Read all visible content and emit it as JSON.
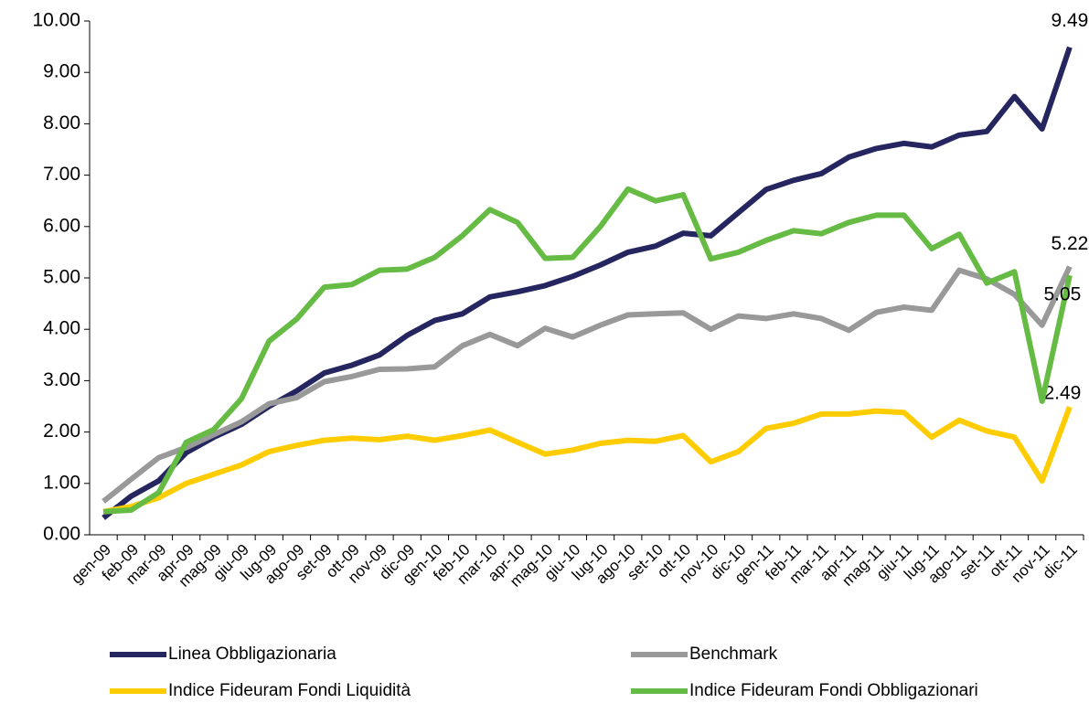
{
  "chart_data": {
    "type": "line",
    "categories": [
      "gen-09",
      "feb-09",
      "mar-09",
      "apr-09",
      "mag-09",
      "giu-09",
      "lug-09",
      "ago-09",
      "set-09",
      "ott-09",
      "nov-09",
      "dic-09",
      "gen-10",
      "feb-10",
      "mar-10",
      "apr-10",
      "mag-10",
      "giu-10",
      "lug-10",
      "ago-10",
      "set-10",
      "ott-10",
      "nov-10",
      "dic-10",
      "gen-11",
      "feb-11",
      "mar-11",
      "apr-11",
      "mag-11",
      "giu-11",
      "lug-11",
      "ago-11",
      "set-11",
      "ott-11",
      "nov-11",
      "dic-11"
    ],
    "series": [
      {
        "name": "Linea Obbligazionaria",
        "color": "#25255f",
        "values": [
          0.33,
          0.75,
          1.05,
          1.6,
          1.9,
          2.15,
          2.5,
          2.8,
          3.15,
          3.3,
          3.5,
          3.88,
          4.17,
          4.3,
          4.63,
          4.73,
          4.85,
          5.03,
          5.25,
          5.5,
          5.62,
          5.87,
          5.82,
          6.27,
          6.72,
          6.9,
          7.03,
          7.35,
          7.52,
          7.62,
          7.55,
          7.78,
          7.85,
          8.53,
          7.9,
          9.49
        ]
      },
      {
        "name": "Benchmark",
        "color": "#999999",
        "values": [
          0.65,
          1.08,
          1.5,
          1.7,
          1.95,
          2.2,
          2.55,
          2.67,
          2.98,
          3.08,
          3.22,
          3.23,
          3.27,
          3.68,
          3.9,
          3.68,
          4.02,
          3.85,
          4.08,
          4.28,
          4.3,
          4.32,
          4.0,
          4.26,
          4.21,
          4.3,
          4.21,
          3.98,
          4.33,
          4.43,
          4.37,
          5.15,
          4.98,
          4.68,
          4.08,
          5.22
        ]
      },
      {
        "name": "Indice Fideuram Fondi Liquidità",
        "color": "#ffcc00",
        "values": [
          0.45,
          0.55,
          0.72,
          1.0,
          1.18,
          1.36,
          1.62,
          1.74,
          1.84,
          1.88,
          1.85,
          1.92,
          1.84,
          1.93,
          2.04,
          1.8,
          1.57,
          1.65,
          1.78,
          1.84,
          1.82,
          1.93,
          1.42,
          1.62,
          2.07,
          2.17,
          2.35,
          2.35,
          2.41,
          2.38,
          1.9,
          2.23,
          2.02,
          1.9,
          1.05,
          2.49
        ]
      },
      {
        "name": "Indice Fideuram Fondi Obbligazionari",
        "color": "#66bb44",
        "values": [
          0.45,
          0.48,
          0.82,
          1.8,
          2.05,
          2.65,
          3.77,
          4.2,
          4.82,
          4.87,
          5.15,
          5.17,
          5.4,
          5.82,
          6.33,
          6.08,
          5.38,
          5.4,
          6.0,
          6.73,
          6.5,
          6.62,
          5.37,
          5.5,
          5.73,
          5.92,
          5.86,
          6.08,
          6.22,
          6.22,
          5.57,
          5.85,
          4.9,
          5.12,
          2.6,
          5.05
        ]
      }
    ],
    "ylim": [
      0,
      10
    ],
    "yticks": [
      {
        "value": 0,
        "label": "0.00"
      },
      {
        "value": 1,
        "label": "1.00"
      },
      {
        "value": 2,
        "label": "2.00"
      },
      {
        "value": 3,
        "label": "3.00"
      },
      {
        "value": 4,
        "label": "4.00"
      },
      {
        "value": 5,
        "label": "5.00"
      },
      {
        "value": 6,
        "label": "6.00"
      },
      {
        "value": 7,
        "label": "7.00"
      },
      {
        "value": 8,
        "label": "8.00"
      },
      {
        "value": 9,
        "label": "9.00"
      },
      {
        "value": 10,
        "label": "10.00"
      }
    ],
    "end_labels": true,
    "legend": "bottom"
  }
}
